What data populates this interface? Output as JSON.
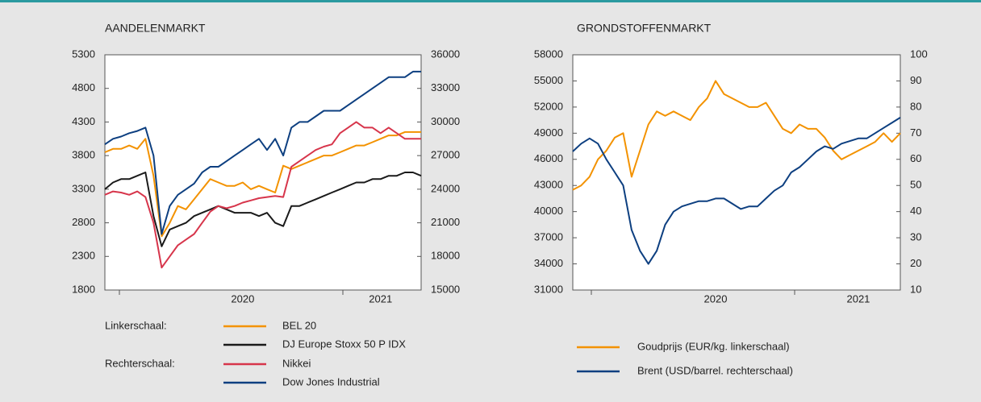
{
  "chart_data": [
    {
      "type": "line",
      "title": "AANDELENMARKT",
      "categories": [
        null,
        null,
        null,
        null,
        null,
        null,
        null,
        null,
        null,
        null,
        null,
        null,
        null,
        null,
        null,
        null,
        null,
        "2020",
        null,
        null,
        null,
        null,
        null,
        null,
        null,
        null,
        null,
        null,
        null,
        null,
        null,
        null,
        null,
        null,
        "2021",
        null,
        null,
        null,
        null,
        null
      ],
      "ylim": [
        1800,
        5300
      ],
      "yticks": [
        1800,
        2300,
        2800,
        3300,
        3800,
        4300,
        4800,
        5300
      ],
      "y2lim": [
        15000,
        36000
      ],
      "y2ticks": [
        15000,
        18000,
        21000,
        24000,
        27000,
        30000,
        33000,
        36000
      ],
      "legend_group_labels": [
        "Linkerschaal:",
        "Rechterschaal:"
      ],
      "series": [
        {
          "name": "BEL 20",
          "color": "#f39200",
          "values": [
            3850,
            3900,
            3900,
            3950,
            3900,
            4050,
            3500,
            2600,
            2800,
            3050,
            3000,
            3150,
            3300,
            3450,
            3400,
            3350,
            3350,
            3400,
            3300,
            3350,
            3300,
            3250,
            3650,
            3600,
            3650,
            3700,
            3750,
            3800,
            3800,
            3850,
            3900,
            3950,
            3950,
            4000,
            4050,
            4100,
            4100,
            4150,
            4150,
            4150
          ]
        },
        {
          "name": "DJ Europe Stoxx 50 P IDX",
          "color": "#1a1a1a",
          "values": [
            3300,
            3400,
            3450,
            3450,
            3500,
            3550,
            2900,
            2450,
            2700,
            2750,
            2800,
            2900,
            2950,
            3000,
            3050,
            3000,
            2950,
            2950,
            2950,
            2900,
            2950,
            2800,
            2750,
            3050,
            3050,
            3100,
            3150,
            3200,
            3250,
            3300,
            3350,
            3400,
            3400,
            3450,
            3450,
            3500,
            3500,
            3550,
            3550,
            3500
          ]
        },
        {
          "name": "Nikkei",
          "color": "#d7354b",
          "axis": "y2",
          "values": [
            23500,
            23800,
            23700,
            23500,
            23800,
            23300,
            21000,
            17000,
            18000,
            19000,
            19500,
            20000,
            21000,
            22000,
            22500,
            22300,
            22500,
            22800,
            23000,
            23200,
            23300,
            23400,
            23300,
            26000,
            26500,
            27000,
            27500,
            27800,
            28000,
            29000,
            29500,
            30000,
            29500,
            29500,
            29000,
            29500,
            29000,
            28500,
            28500,
            28500
          ]
        },
        {
          "name": "Dow Jones Industrial",
          "color": "#0d3f80",
          "axis": "y2",
          "values": [
            28000,
            28500,
            28700,
            29000,
            29200,
            29500,
            27000,
            20000,
            22500,
            23500,
            24000,
            24500,
            25500,
            26000,
            26000,
            26500,
            27000,
            27500,
            28000,
            28500,
            27500,
            28500,
            27000,
            29500,
            30000,
            30000,
            30500,
            31000,
            31000,
            31000,
            31500,
            32000,
            32500,
            33000,
            33500,
            34000,
            34000,
            34000,
            34500,
            34500
          ]
        }
      ]
    },
    {
      "type": "line",
      "title": "GRONDSTOFFENMARKT",
      "categories": [
        null,
        null,
        null,
        null,
        null,
        null,
        null,
        null,
        null,
        null,
        null,
        null,
        null,
        null,
        null,
        null,
        null,
        "2020",
        null,
        null,
        null,
        null,
        null,
        null,
        null,
        null,
        null,
        null,
        null,
        null,
        null,
        null,
        null,
        null,
        "2021",
        null,
        null,
        null,
        null,
        null
      ],
      "ylim": [
        31000,
        58000
      ],
      "yticks": [
        31000,
        34000,
        37000,
        40000,
        43000,
        46000,
        49000,
        52000,
        55000,
        58000
      ],
      "y2lim": [
        10,
        100
      ],
      "y2ticks": [
        10,
        20,
        30,
        40,
        50,
        60,
        70,
        80,
        90,
        100
      ],
      "series": [
        {
          "name": "Goudprijs (EUR/kg. linkerschaal)",
          "color": "#f39200",
          "values": [
            42500,
            43000,
            44000,
            46000,
            47000,
            48500,
            49000,
            44000,
            47000,
            50000,
            51500,
            51000,
            51500,
            51000,
            50500,
            52000,
            53000,
            55000,
            53500,
            53000,
            52500,
            52000,
            52000,
            52500,
            51000,
            49500,
            49000,
            50000,
            49500,
            49500,
            48500,
            47000,
            46000,
            46500,
            47000,
            47500,
            48000,
            49000,
            48000,
            49000
          ]
        },
        {
          "name": "Brent (USD/barrel. rechterschaal)",
          "color": "#0d3f80",
          "axis": "y2",
          "values": [
            63,
            66,
            68,
            66,
            60,
            55,
            50,
            33,
            25,
            20,
            25,
            35,
            40,
            42,
            43,
            44,
            44,
            45,
            45,
            43,
            41,
            42,
            42,
            45,
            48,
            50,
            55,
            57,
            60,
            63,
            65,
            64,
            66,
            67,
            68,
            68,
            70,
            72,
            74,
            76
          ]
        }
      ]
    }
  ]
}
